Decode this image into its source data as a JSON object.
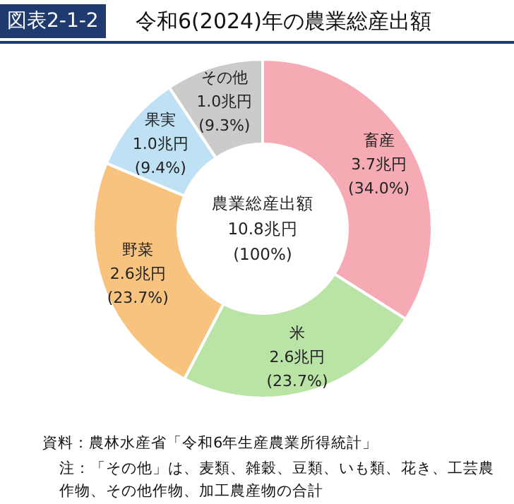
{
  "chart_data": {
    "type": "donut",
    "title": "令和6(2024)年の農業総産出額",
    "categories": [
      "畜産",
      "米",
      "野菜",
      "果実",
      "その他"
    ],
    "values": [
      34.0,
      23.7,
      23.7,
      9.4,
      9.3
    ],
    "value_labels": [
      "3.7兆円\n(34.0%)",
      "2.6兆円\n(23.7%)",
      "2.6兆円\n(23.7%)",
      "1.0兆円\n(9.4%)",
      "1.0兆円\n(9.3%)"
    ],
    "colors": [
      "#f6aab4",
      "#b9e4a6",
      "#f7c37e",
      "#bfe1f4",
      "#cbcbcb"
    ],
    "annotations": [
      "図表2-1-2",
      "農業総産出額\n10.8兆円\n(100%)",
      "資料：農林水産省「令和6年生産農業所得統計」",
      "注：「その他」は、麦類、雑穀、豆類、いも類、花き、工芸農作物、その他作物、加工農産物の合計"
    ]
  }
}
